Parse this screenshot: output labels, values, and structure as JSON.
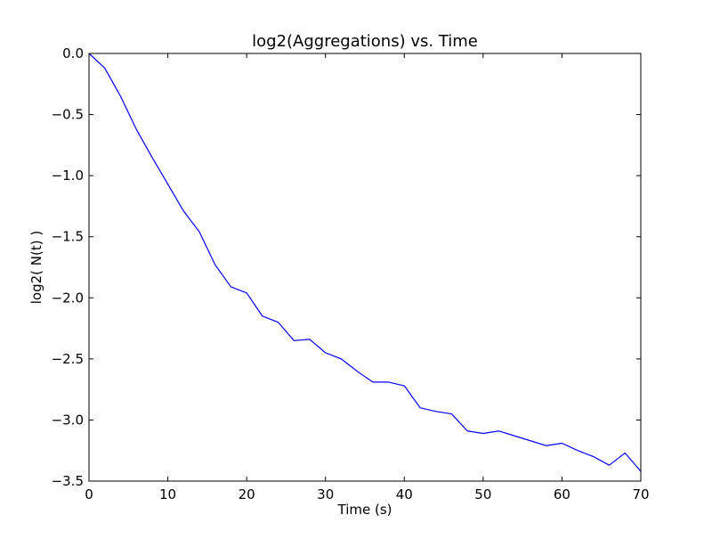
{
  "chart_data": {
    "type": "line",
    "title": "log2(Aggregations)  vs. Time",
    "xlabel": "Time (s)",
    "ylabel": "log2( N(t) )",
    "xlim": [
      0,
      70
    ],
    "ylim": [
      -3.5,
      0.0
    ],
    "x_ticks": [
      0,
      10,
      20,
      30,
      40,
      50,
      60,
      70
    ],
    "x_tick_labels": [
      "0",
      "10",
      "20",
      "30",
      "40",
      "50",
      "60",
      "70"
    ],
    "y_ticks": [
      0.0,
      -0.5,
      -1.0,
      -1.5,
      -2.0,
      -2.5,
      -3.0,
      -3.5
    ],
    "y_tick_labels": [
      "0.0",
      "−0.5",
      "−1.0",
      "−1.5",
      "−2.0",
      "−2.5",
      "−3.0",
      "−3.5"
    ],
    "grid": false,
    "legend": "none",
    "series": [
      {
        "color": "#0000ff",
        "x": [
          0,
          2,
          4,
          6,
          8,
          10,
          12,
          14,
          16,
          18,
          20,
          22,
          24,
          26,
          28,
          30,
          32,
          34,
          36,
          38,
          40,
          42,
          44,
          46,
          48,
          50,
          52,
          54,
          56,
          58,
          60,
          62,
          64,
          66,
          68,
          70
        ],
        "y": [
          0.0,
          -0.12,
          -0.35,
          -0.62,
          -0.85,
          -1.07,
          -1.29,
          -1.46,
          -1.73,
          -1.91,
          -1.96,
          -2.15,
          -2.2,
          -2.35,
          -2.34,
          -2.45,
          -2.5,
          -2.6,
          -2.69,
          -2.69,
          -2.72,
          -2.9,
          -2.93,
          -2.95,
          -3.09,
          -3.11,
          -3.09,
          -3.13,
          -3.17,
          -3.21,
          -3.19,
          -3.25,
          -3.3,
          -3.37,
          -3.27,
          -3.42
        ]
      }
    ]
  }
}
